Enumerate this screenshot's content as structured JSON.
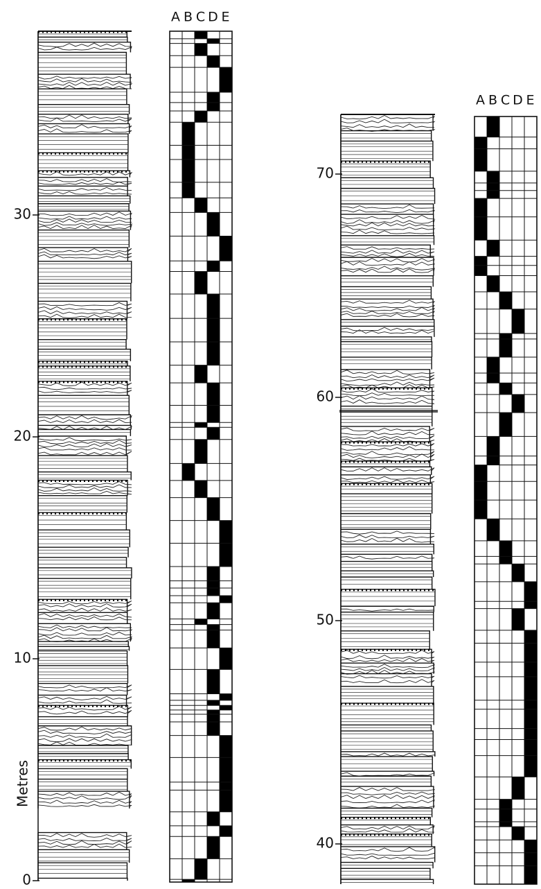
{
  "left_log": {
    "axis_label": "Metres",
    "ticks": [
      0,
      10,
      20,
      30
    ],
    "facies_header": [
      "A",
      "B",
      "C",
      "D",
      "E"
    ]
  },
  "right_log": {
    "ticks": [
      40,
      50,
      60,
      70
    ],
    "facies_header": [
      "A",
      "B",
      "C",
      "D",
      "E"
    ]
  }
}
